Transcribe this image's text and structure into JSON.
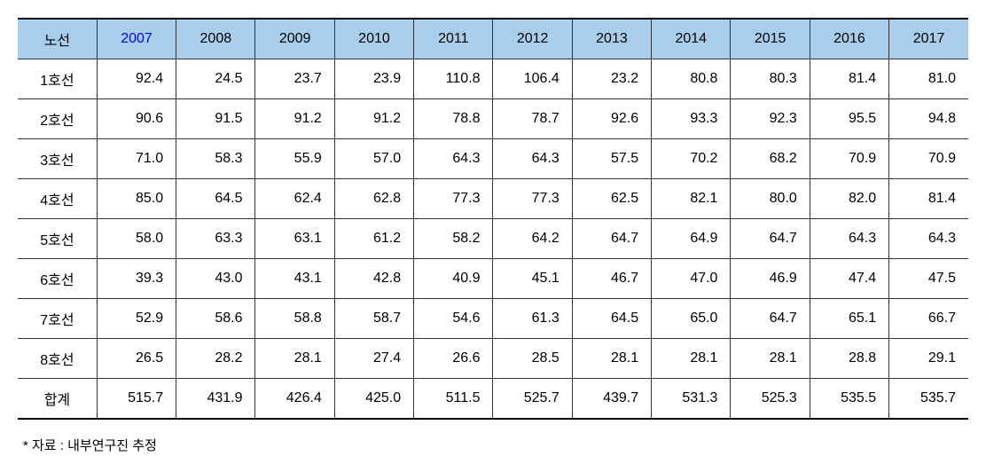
{
  "table": {
    "columns": [
      "노선",
      "2007",
      "2008",
      "2009",
      "2010",
      "2011",
      "2012",
      "2013",
      "2014",
      "2015",
      "2016",
      "2017"
    ],
    "highlight_column_index": 1,
    "header_bg": "#a8ceeb",
    "highlight_color": "#0000ff",
    "border_color": "#333333",
    "rows": [
      {
        "label": "1호선",
        "values": [
          "92.4",
          "24.5",
          "23.7",
          "23.9",
          "110.8",
          "106.4",
          "23.2",
          "80.8",
          "80.3",
          "81.4",
          "81.0"
        ]
      },
      {
        "label": "2호선",
        "values": [
          "90.6",
          "91.5",
          "91.2",
          "91.2",
          "78.8",
          "78.7",
          "92.6",
          "93.3",
          "92.3",
          "95.5",
          "94.8"
        ]
      },
      {
        "label": "3호선",
        "values": [
          "71.0",
          "58.3",
          "55.9",
          "57.0",
          "64.3",
          "64.3",
          "57.5",
          "70.2",
          "68.2",
          "70.9",
          "70.9"
        ]
      },
      {
        "label": "4호선",
        "values": [
          "85.0",
          "64.5",
          "62.4",
          "62.8",
          "77.3",
          "77.3",
          "62.5",
          "82.1",
          "80.0",
          "82.0",
          "81.4"
        ]
      },
      {
        "label": "5호선",
        "values": [
          "58.0",
          "63.3",
          "63.1",
          "61.2",
          "58.2",
          "64.2",
          "64.7",
          "64.9",
          "64.7",
          "64.3",
          "64.3"
        ]
      },
      {
        "label": "6호선",
        "values": [
          "39.3",
          "43.0",
          "43.1",
          "42.8",
          "40.9",
          "45.1",
          "46.7",
          "47.0",
          "46.9",
          "47.4",
          "47.5"
        ]
      },
      {
        "label": "7호선",
        "values": [
          "52.9",
          "58.6",
          "58.8",
          "58.7",
          "54.6",
          "61.3",
          "64.5",
          "65.0",
          "64.7",
          "65.1",
          "66.7"
        ]
      },
      {
        "label": "8호선",
        "values": [
          "26.5",
          "28.2",
          "28.1",
          "27.4",
          "26.6",
          "28.5",
          "28.1",
          "28.1",
          "28.1",
          "28.8",
          "29.1"
        ]
      },
      {
        "label": "합계",
        "values": [
          "515.7",
          "431.9",
          "426.4",
          "425.0",
          "511.5",
          "525.7",
          "439.7",
          "531.3",
          "525.3",
          "535.5",
          "535.7"
        ]
      }
    ]
  },
  "footnote": "* 자료 :  내부연구진 추정"
}
